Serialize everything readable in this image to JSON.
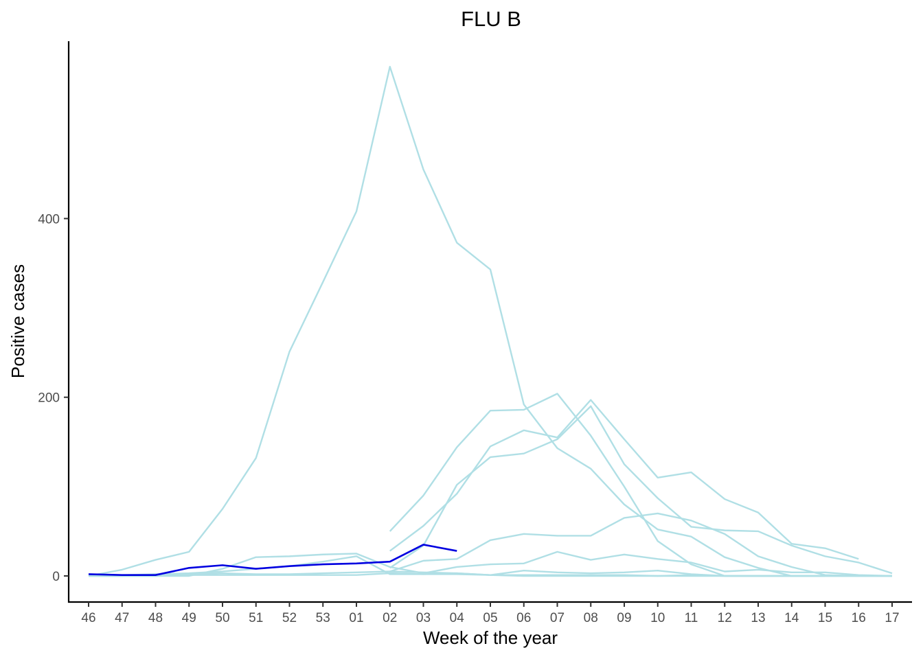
{
  "chart_data": {
    "type": "line",
    "title": "FLU B",
    "xlabel": "Week of the year",
    "ylabel": "Positive cases",
    "categories": [
      "46",
      "47",
      "48",
      "49",
      "50",
      "51",
      "52",
      "53",
      "01",
      "02",
      "03",
      "04",
      "05",
      "06",
      "07",
      "08",
      "09",
      "10",
      "11",
      "12",
      "13",
      "14",
      "15",
      "16",
      "17"
    ],
    "yticks": [
      0,
      200,
      400
    ],
    "ylim": [
      -27,
      590
    ],
    "grid": false,
    "legend": "none",
    "colors": {
      "past": "#b0dfe5",
      "current": "#0000e0"
    },
    "series": [
      {
        "role": "past",
        "values": [
          0,
          7,
          18,
          27,
          75,
          132,
          251,
          329,
          408,
          570,
          455,
          373,
          343,
          192,
          143,
          120,
          80,
          52,
          44,
          21,
          9,
          0,
          0,
          null,
          null
        ]
      },
      {
        "role": "past",
        "values": [
          null,
          null,
          null,
          null,
          null,
          null,
          null,
          null,
          null,
          50,
          90,
          144,
          185,
          186,
          204,
          157,
          100,
          39,
          13,
          0,
          0,
          0,
          0,
          null,
          null
        ]
      },
      {
        "role": "past",
        "values": [
          null,
          null,
          null,
          null,
          null,
          null,
          null,
          null,
          null,
          28,
          56,
          92,
          145,
          163,
          155,
          197,
          153,
          110,
          116,
          86,
          71,
          36,
          31,
          19,
          null
        ]
      },
      {
        "role": "past",
        "values": [
          null,
          null,
          null,
          null,
          null,
          null,
          null,
          null,
          null,
          9,
          34,
          102,
          133,
          137,
          153,
          190,
          125,
          87,
          55,
          51,
          50,
          34,
          22,
          15,
          3
        ]
      },
      {
        "role": "past",
        "values": [
          null,
          null,
          null,
          null,
          null,
          null,
          null,
          null,
          null,
          5,
          17,
          19,
          40,
          47,
          45,
          45,
          65,
          70,
          62,
          47,
          22,
          10,
          1,
          0,
          0
        ]
      },
      {
        "role": "past",
        "values": [
          0,
          0,
          0,
          0,
          8,
          21,
          22,
          24,
          25,
          10,
          3,
          10,
          13,
          14,
          27,
          18,
          24,
          19,
          15,
          5,
          7,
          4,
          4,
          1,
          0
        ]
      },
      {
        "role": "past",
        "values": [
          0,
          0,
          2,
          3,
          5,
          8,
          11,
          16,
          22,
          2,
          2,
          3,
          1,
          6,
          4,
          3,
          4,
          6,
          2,
          0,
          0,
          0,
          0,
          0,
          0
        ]
      },
      {
        "role": "past",
        "values": [
          1,
          1,
          2,
          2,
          3,
          2,
          2,
          3,
          4,
          5,
          4,
          3,
          1,
          1,
          1,
          1,
          1,
          0,
          1,
          0,
          0,
          0,
          0,
          0,
          0
        ]
      },
      {
        "role": "past",
        "values": [
          0,
          0,
          0,
          1,
          1,
          1,
          1,
          1,
          1,
          3,
          2,
          2,
          1,
          0,
          0,
          0,
          0,
          0,
          0,
          0,
          0,
          0,
          0,
          0,
          0
        ]
      },
      {
        "role": "current",
        "values": [
          2,
          1,
          1,
          9,
          12,
          8,
          11,
          13,
          14,
          16,
          35,
          28,
          null,
          null,
          null,
          null,
          null,
          null,
          null,
          null,
          null,
          null,
          null,
          null,
          null
        ]
      }
    ]
  }
}
